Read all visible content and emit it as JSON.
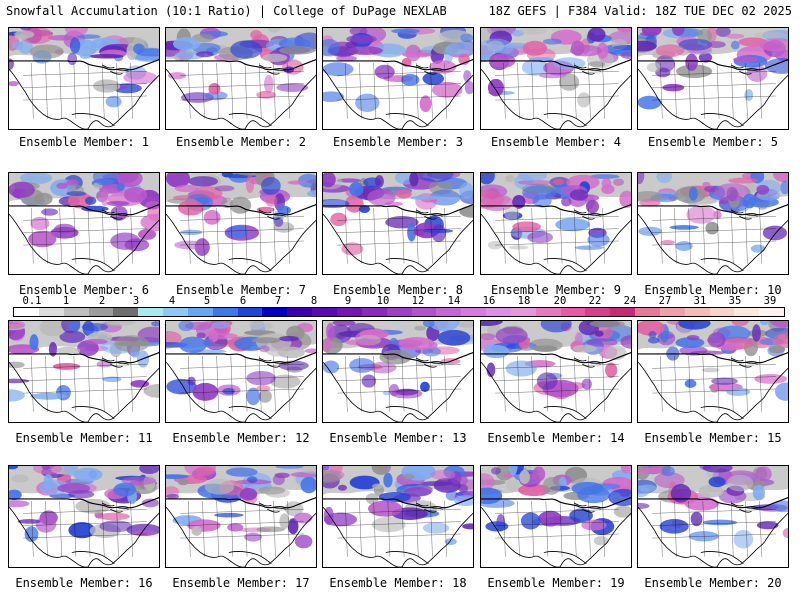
{
  "header": {
    "left": "Snowfall Accumulation (10:1 Ratio) | College of DuPage NEXLAB",
    "right": "18Z GEFS | F384 Valid: 18Z TUE DEC 02 2025"
  },
  "members": [
    {
      "label": "Ensemble Member: 1"
    },
    {
      "label": "Ensemble Member: 2"
    },
    {
      "label": "Ensemble Member: 3"
    },
    {
      "label": "Ensemble Member: 4"
    },
    {
      "label": "Ensemble Member: 5"
    },
    {
      "label": "Ensemble Member: 6"
    },
    {
      "label": "Ensemble Member: 7"
    },
    {
      "label": "Ensemble Member: 8"
    },
    {
      "label": "Ensemble Member: 9"
    },
    {
      "label": "Ensemble Member: 10"
    },
    {
      "label": "Ensemble Member: 11"
    },
    {
      "label": "Ensemble Member: 12"
    },
    {
      "label": "Ensemble Member: 13"
    },
    {
      "label": "Ensemble Member: 14"
    },
    {
      "label": "Ensemble Member: 15"
    },
    {
      "label": "Ensemble Member: 16"
    },
    {
      "label": "Ensemble Member: 17"
    },
    {
      "label": "Ensemble Member: 18"
    },
    {
      "label": "Ensemble Member: 19"
    },
    {
      "label": "Ensemble Member: 20"
    }
  ],
  "colorbar": {
    "ticks": [
      "0.1",
      "1",
      "2",
      "3",
      "4",
      "5",
      "6",
      "7",
      "8",
      "9",
      "10",
      "12",
      "14",
      "16",
      "18",
      "20",
      "22",
      "24",
      "27",
      "31",
      "35",
      "39"
    ],
    "colors": [
      "#ffffff",
      "#dcdcdc",
      "#bdbdbd",
      "#9c9c9c",
      "#6e6e6e",
      "#a8e8f0",
      "#8cc8f8",
      "#64a8f4",
      "#3c78e8",
      "#1e46d8",
      "#0000c8",
      "#3c00b4",
      "#5a0ab4",
      "#7814b4",
      "#8c28c0",
      "#a03cc8",
      "#b450d0",
      "#c864d8",
      "#d878e0",
      "#e08ce8",
      "#e896dc",
      "#e878c0",
      "#e85aa8",
      "#d83c90",
      "#c82878",
      "#e87898",
      "#f0a0a8",
      "#f4bcb4",
      "#f8d4c8",
      "#fce8dc",
      "#fff4ec"
    ]
  }
}
